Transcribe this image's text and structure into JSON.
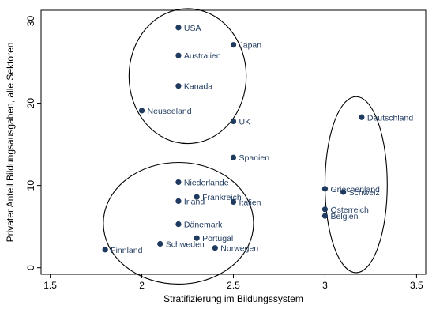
{
  "chart_data": {
    "type": "scatter",
    "title": "",
    "xlabel": "Stratifizierung im Bildungssystem",
    "ylabel": "Privater Anteil Bildungsausgaben, alle Sektoren",
    "xlim": [
      1.45,
      3.55
    ],
    "ylim": [
      -0.8,
      31.3
    ],
    "xticks": [
      1.5,
      2,
      2.5,
      3,
      3.5
    ],
    "xtick_labels": [
      "1.5",
      "2",
      "2.5",
      "3",
      "3.5"
    ],
    "yticks": [
      0,
      10,
      20,
      30
    ],
    "ytick_labels": [
      "0",
      "10",
      "20",
      "30"
    ],
    "grid": false,
    "legend": "none",
    "marker_color": "#1f3a5f",
    "points": [
      {
        "label": "USA",
        "x": 2.2,
        "y": 29.2
      },
      {
        "label": "Japan",
        "x": 2.5,
        "y": 27.1
      },
      {
        "label": "Australien",
        "x": 2.2,
        "y": 25.8
      },
      {
        "label": "Kanada",
        "x": 2.2,
        "y": 22.1
      },
      {
        "label": "Neuseeland",
        "x": 2.0,
        "y": 19.1
      },
      {
        "label": "UK",
        "x": 2.5,
        "y": 17.8
      },
      {
        "label": "Deutschland",
        "x": 3.2,
        "y": 18.3
      },
      {
        "label": "Spanien",
        "x": 2.5,
        "y": 13.4
      },
      {
        "label": "Niederlande",
        "x": 2.2,
        "y": 10.4
      },
      {
        "label": "Frankreich",
        "x": 2.3,
        "y": 8.6
      },
      {
        "label": "Irland",
        "x": 2.2,
        "y": 8.1
      },
      {
        "label": "Italien",
        "x": 2.5,
        "y": 8.0
      },
      {
        "label": "Griechenland",
        "x": 3.0,
        "y": 9.6
      },
      {
        "label": "Schweiz",
        "x": 3.1,
        "y": 9.2
      },
      {
        "label": "Österreich",
        "x": 3.0,
        "y": 7.1
      },
      {
        "label": "Belgien",
        "x": 3.0,
        "y": 6.3
      },
      {
        "label": "Dänemark",
        "x": 2.2,
        "y": 5.3
      },
      {
        "label": "Portugal",
        "x": 2.3,
        "y": 3.6
      },
      {
        "label": "Schweden",
        "x": 2.1,
        "y": 2.9
      },
      {
        "label": "Norwegen",
        "x": 2.4,
        "y": 2.4
      },
      {
        "label": "Finnland",
        "x": 1.8,
        "y": 2.2
      }
    ],
    "annotations": [
      {
        "type": "ellipse",
        "name": "cluster-top",
        "cx": 2.25,
        "cy": 23.3,
        "rx": 0.32,
        "ry": 8.2
      },
      {
        "type": "ellipse",
        "name": "cluster-bottom",
        "cx": 2.2,
        "cy": 5.4,
        "rx": 0.41,
        "ry": 7.4
      },
      {
        "type": "ellipse",
        "name": "cluster-right",
        "cx": 3.17,
        "cy": 10.1,
        "rx": 0.17,
        "ry": 10.7
      }
    ]
  }
}
